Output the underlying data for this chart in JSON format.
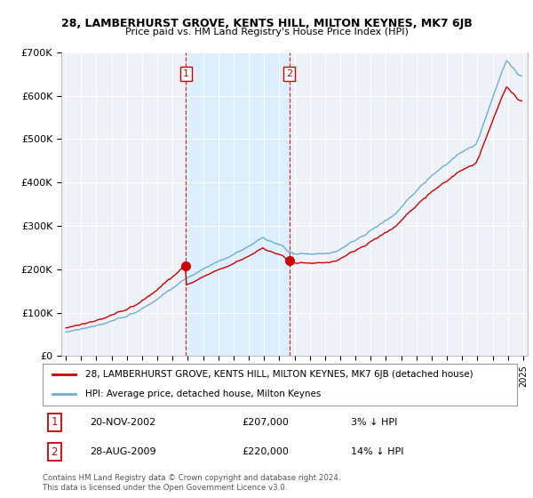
{
  "title1": "28, LAMBERHURST GROVE, KENTS HILL, MILTON KEYNES, MK7 6JB",
  "title2": "Price paid vs. HM Land Registry's House Price Index (HPI)",
  "ylabel_ticks": [
    "£0",
    "£100K",
    "£200K",
    "£300K",
    "£400K",
    "£500K",
    "£600K",
    "£700K"
  ],
  "ytick_vals": [
    0,
    100000,
    200000,
    300000,
    400000,
    500000,
    600000,
    700000
  ],
  "ylim": [
    0,
    700000
  ],
  "sale1_date": "20-NOV-2002",
  "sale1_price": 207000,
  "sale1_label": "1",
  "sale1_hpi_diff": "3% ↓ HPI",
  "sale2_date": "28-AUG-2009",
  "sale2_price": 220000,
  "sale2_label": "2",
  "sale2_hpi_diff": "14% ↓ HPI",
  "legend_line1": "28, LAMBERHURST GROVE, KENTS HILL, MILTON KEYNES, MK7 6JB (detached house)",
  "legend_line2": "HPI: Average price, detached house, Milton Keynes",
  "footer": "Contains HM Land Registry data © Crown copyright and database right 2024.\nThis data is licensed under the Open Government Licence v3.0.",
  "hpi_color": "#6baed6",
  "price_color": "#cc0000",
  "vline_color": "#cc0000",
  "shade_color": "#ddeeff",
  "background_chart": "#eef2f8",
  "background_fig": "#ffffff"
}
